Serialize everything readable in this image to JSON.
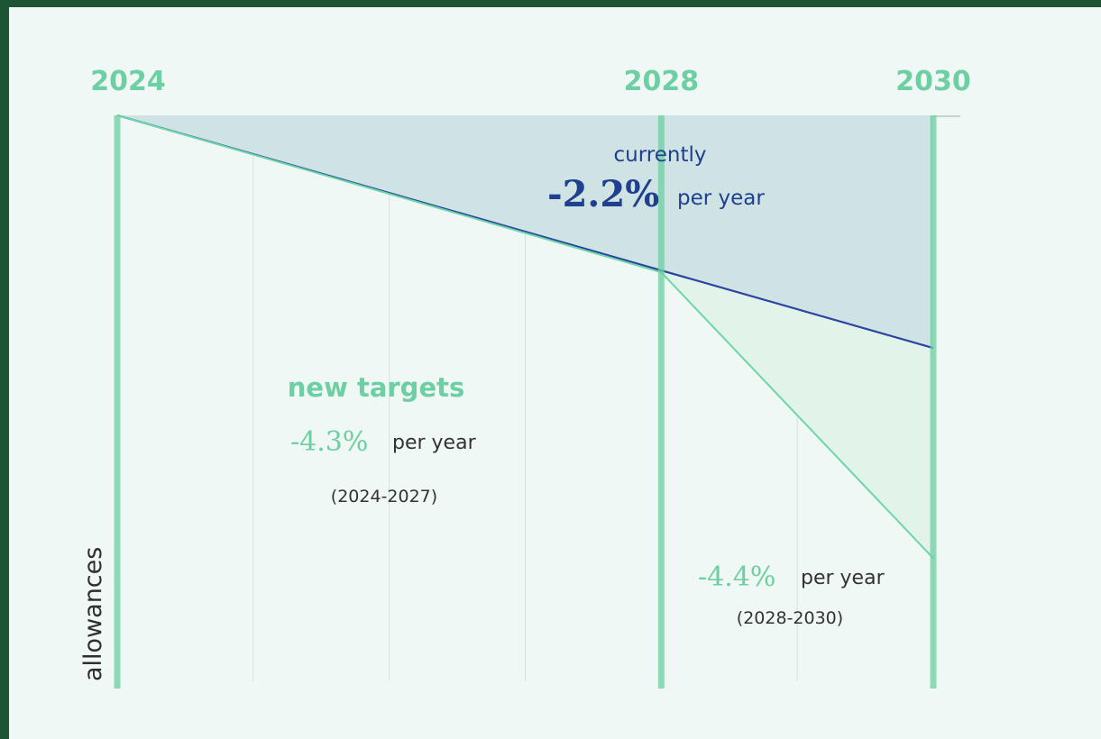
{
  "chart_data": {
    "type": "area",
    "x_ticks": [
      "2024",
      "2028",
      "2030"
    ],
    "xlim": [
      2024,
      2030
    ],
    "ylabel": "allowances",
    "series": [
      {
        "name": "currently",
        "rate": "-2.2%",
        "rate_suffix": "per year",
        "x": [
          2024,
          2030
        ],
        "y": [
          100,
          58.5
        ],
        "color": "#2a44a0",
        "fill": "#cfe3e4"
      },
      {
        "name": "new targets",
        "x": [
          2024,
          2028,
          2030
        ],
        "y": [
          100,
          72,
          21
        ],
        "color": "#6dd6a8",
        "fill": "#e2f3ea",
        "segments": [
          {
            "rate": "-4.3%",
            "suffix": "per year",
            "period": "(2024-2027)"
          },
          {
            "rate": "-4.4%",
            "suffix": "per year",
            "period": "(2028-2030)"
          }
        ]
      }
    ],
    "grid": true
  }
}
